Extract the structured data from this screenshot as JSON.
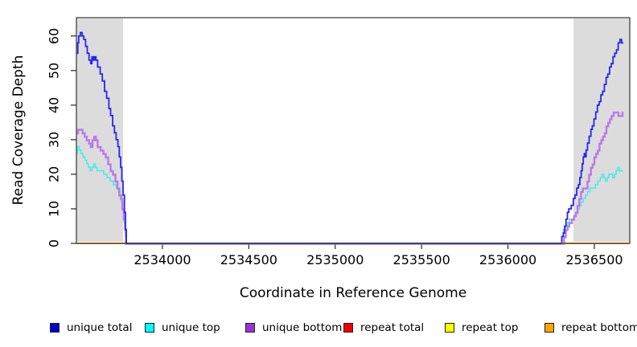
{
  "chart_data": {
    "type": "line",
    "title": "",
    "xlabel": "Coordinate in Reference Genome",
    "ylabel": "Read Coverage Depth",
    "xlim": [
      2533502,
      2536705
    ],
    "ylim": [
      0,
      65.3
    ],
    "grid": false,
    "legend_position": "bottom",
    "background_color": "#ffffff",
    "band_color": "#dcdcdc",
    "box_color": "#333333",
    "x_ticks": [
      {
        "label": "2534000",
        "value": 2534000
      },
      {
        "label": "2534500",
        "value": 2534500
      },
      {
        "label": "2535000",
        "value": 2535000
      },
      {
        "label": "2535500",
        "value": 2535500
      },
      {
        "label": "2536000",
        "value": 2536000
      },
      {
        "label": "2536500",
        "value": 2536500
      }
    ],
    "y_ticks": [
      {
        "label": "0",
        "value": 0
      },
      {
        "label": "10",
        "value": 10
      },
      {
        "label": "20",
        "value": 20
      },
      {
        "label": "30",
        "value": 30
      },
      {
        "label": "40",
        "value": 40
      },
      {
        "label": "50",
        "value": 50
      },
      {
        "label": "60",
        "value": 60
      }
    ],
    "shaded_regions": [
      {
        "x1": 2533502,
        "x2": 2533772
      },
      {
        "x1": 2536379,
        "x2": 2536705
      }
    ],
    "series": [
      {
        "name": "unique total",
        "swatch": "#0000CD",
        "line": "#2727EE",
        "width": 1.8,
        "segments": [
          [
            [
              2533500,
              55
            ],
            [
              2533510,
              58
            ],
            [
              2533515,
              60
            ],
            [
              2533525,
              61
            ],
            [
              2533535,
              60
            ],
            [
              2533545,
              59
            ],
            [
              2533555,
              57
            ],
            [
              2533565,
              55
            ],
            [
              2533575,
              53
            ],
            [
              2533585,
              52
            ],
            [
              2533592,
              54
            ],
            [
              2533600,
              53
            ],
            [
              2533607,
              54
            ],
            [
              2533615,
              53
            ],
            [
              2533625,
              51
            ],
            [
              2533640,
              49
            ],
            [
              2533652,
              47
            ],
            [
              2533665,
              44
            ],
            [
              2533677,
              42
            ],
            [
              2533690,
              39
            ],
            [
              2533700,
              37
            ],
            [
              2533712,
              34
            ],
            [
              2533722,
              32
            ],
            [
              2533732,
              30
            ],
            [
              2533742,
              28
            ],
            [
              2533750,
              25
            ],
            [
              2533758,
              22
            ],
            [
              2533765,
              18
            ],
            [
              2533772,
              14
            ],
            [
              2533780,
              9
            ],
            [
              2533786,
              4
            ],
            [
              2533791,
              0
            ],
            [
              2536305,
              0
            ],
            [
              2536312,
              2
            ],
            [
              2536320,
              3
            ],
            [
              2536328,
              5
            ],
            [
              2536336,
              7
            ],
            [
              2536344,
              9
            ],
            [
              2536352,
              10
            ],
            [
              2536366,
              11
            ],
            [
              2536378,
              13
            ],
            [
              2536388,
              14
            ],
            [
              2536398,
              16
            ],
            [
              2536408,
              17
            ],
            [
              2536416,
              19
            ],
            [
              2536424,
              21
            ],
            [
              2536430,
              23
            ],
            [
              2536436,
              25
            ],
            [
              2536442,
              26
            ],
            [
              2536446,
              25
            ],
            [
              2536452,
              27
            ],
            [
              2536460,
              29
            ],
            [
              2536470,
              31
            ],
            [
              2536480,
              33
            ],
            [
              2536488,
              34
            ],
            [
              2536498,
              36
            ],
            [
              2536508,
              38
            ],
            [
              2536518,
              40
            ],
            [
              2536528,
              41
            ],
            [
              2536538,
              43
            ],
            [
              2536548,
              44
            ],
            [
              2536558,
              46
            ],
            [
              2536568,
              48
            ],
            [
              2536578,
              49
            ],
            [
              2536588,
              51
            ],
            [
              2536598,
              52
            ],
            [
              2536608,
              54
            ],
            [
              2536618,
              55
            ],
            [
              2536628,
              56
            ],
            [
              2536638,
              58
            ],
            [
              2536648,
              59
            ],
            [
              2536658,
              58
            ],
            [
              2536668,
              58
            ]
          ]
        ]
      },
      {
        "name": "unique top",
        "swatch": "#00FFFF",
        "line": "#4FE9E9",
        "width": 1.6,
        "segments": [
          [
            [
              2533500,
              26
            ],
            [
              2533508,
              28
            ],
            [
              2533518,
              27
            ],
            [
              2533528,
              26
            ],
            [
              2533540,
              25
            ],
            [
              2533552,
              24
            ],
            [
              2533562,
              23
            ],
            [
              2533572,
              22
            ],
            [
              2533582,
              21
            ],
            [
              2533592,
              22
            ],
            [
              2533602,
              23
            ],
            [
              2533612,
              22
            ],
            [
              2533622,
              21
            ],
            [
              2533645,
              21
            ],
            [
              2533660,
              20
            ],
            [
              2533680,
              19
            ],
            [
              2533698,
              18
            ],
            [
              2533715,
              17
            ],
            [
              2533733,
              16
            ],
            [
              2533745,
              15
            ],
            [
              2533755,
              14
            ],
            [
              2533763,
              12
            ],
            [
              2533770,
              10
            ],
            [
              2533778,
              6
            ],
            [
              2533785,
              2
            ],
            [
              2533790,
              0
            ],
            [
              2536300,
              0
            ],
            [
              2536310,
              2
            ],
            [
              2536320,
              4
            ],
            [
              2536332,
              5
            ],
            [
              2536342,
              6
            ],
            [
              2536356,
              7
            ],
            [
              2536372,
              7
            ],
            [
              2536384,
              8
            ],
            [
              2536394,
              9
            ],
            [
              2536404,
              10
            ],
            [
              2536414,
              11
            ],
            [
              2536424,
              12
            ],
            [
              2536436,
              13
            ],
            [
              2536448,
              14
            ],
            [
              2536460,
              15
            ],
            [
              2536475,
              16
            ],
            [
              2536492,
              16
            ],
            [
              2536506,
              17
            ],
            [
              2536520,
              18
            ],
            [
              2536534,
              19
            ],
            [
              2536544,
              20
            ],
            [
              2536554,
              19
            ],
            [
              2536564,
              18
            ],
            [
              2536574,
              19
            ],
            [
              2536584,
              20
            ],
            [
              2536596,
              20
            ],
            [
              2536606,
              19
            ],
            [
              2536616,
              20
            ],
            [
              2536626,
              21
            ],
            [
              2536636,
              22
            ],
            [
              2536646,
              21
            ],
            [
              2536668,
              21
            ]
          ]
        ]
      },
      {
        "name": "unique bottom",
        "swatch": "#9B30D9",
        "line": "#BC79E8",
        "width": 2.4,
        "segments": [
          [
            [
              2533500,
              32
            ],
            [
              2533512,
              33
            ],
            [
              2533525,
              33
            ],
            [
              2533538,
              32
            ],
            [
              2533550,
              31
            ],
            [
              2533562,
              30
            ],
            [
              2533575,
              29
            ],
            [
              2533585,
              28
            ],
            [
              2533595,
              30
            ],
            [
              2533605,
              31
            ],
            [
              2533615,
              30
            ],
            [
              2533625,
              28
            ],
            [
              2533642,
              27
            ],
            [
              2533658,
              26
            ],
            [
              2533672,
              25
            ],
            [
              2533686,
              23
            ],
            [
              2533700,
              21
            ],
            [
              2533714,
              20
            ],
            [
              2533728,
              18
            ],
            [
              2533740,
              16
            ],
            [
              2533750,
              14
            ],
            [
              2533760,
              13
            ],
            [
              2533768,
              10
            ],
            [
              2533776,
              7
            ],
            [
              2533783,
              4
            ],
            [
              2533789,
              0
            ],
            [
              2536315,
              0
            ],
            [
              2536325,
              2
            ],
            [
              2536335,
              4
            ],
            [
              2536345,
              5
            ],
            [
              2536355,
              6
            ],
            [
              2536370,
              7
            ],
            [
              2536383,
              8
            ],
            [
              2536393,
              9
            ],
            [
              2536403,
              11
            ],
            [
              2536413,
              13
            ],
            [
              2536423,
              15
            ],
            [
              2536433,
              16
            ],
            [
              2536450,
              16
            ],
            [
              2536460,
              18
            ],
            [
              2536470,
              20
            ],
            [
              2536480,
              22
            ],
            [
              2536490,
              23
            ],
            [
              2536500,
              25
            ],
            [
              2536510,
              26
            ],
            [
              2536520,
              27
            ],
            [
              2536530,
              29
            ],
            [
              2536540,
              30
            ],
            [
              2536550,
              31
            ],
            [
              2536560,
              32
            ],
            [
              2536570,
              34
            ],
            [
              2536580,
              35
            ],
            [
              2536590,
              36
            ],
            [
              2536600,
              37
            ],
            [
              2536612,
              38
            ],
            [
              2536630,
              38
            ],
            [
              2536640,
              37
            ],
            [
              2536655,
              37
            ],
            [
              2536663,
              38
            ],
            [
              2536668,
              38
            ]
          ]
        ]
      },
      {
        "name": "repeat total",
        "swatch": "#EE0000",
        "line": "#EE0000",
        "width": 1.6,
        "segments": [
          [
            [
              2533500,
              0
            ],
            [
              2533785,
              0
            ]
          ],
          [
            [
              2536310,
              0
            ],
            [
              2536700,
              0
            ]
          ]
        ]
      },
      {
        "name": "repeat top",
        "swatch": "#FFFF00",
        "line": "#FFFF00",
        "width": 1.6,
        "segments": [
          [
            [
              2533500,
              0
            ],
            [
              2533785,
              0
            ]
          ],
          [
            [
              2536310,
              0
            ],
            [
              2536700,
              0
            ]
          ]
        ]
      },
      {
        "name": "repeat bottom",
        "swatch": "#FFA500",
        "line": "#FFA500",
        "width": 2.0,
        "segments": [
          [
            [
              2533500,
              0
            ],
            [
              2533785,
              0
            ]
          ],
          [
            [
              2536310,
              0
            ],
            [
              2536700,
              0
            ]
          ]
        ]
      }
    ]
  }
}
